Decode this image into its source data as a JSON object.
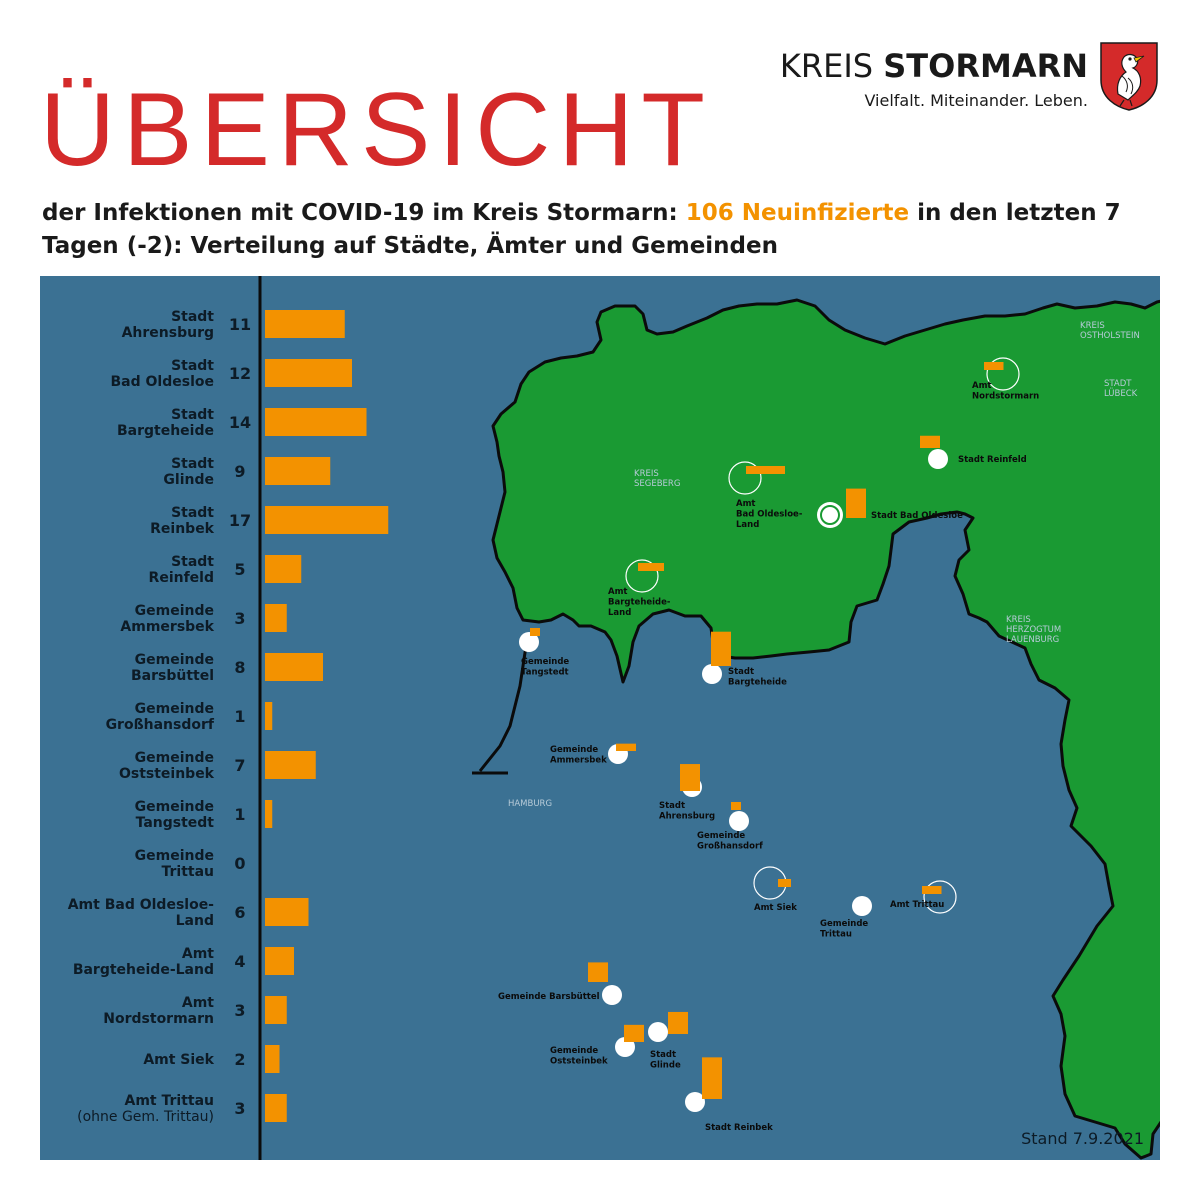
{
  "header": {
    "title": "ÜBERSICHT",
    "subtitle_pre": "der Infektionen mit COVID-19 im Kreis Stormarn: ",
    "subtitle_highlight": "106 Neuinfizierte",
    "subtitle_post": " in den letzten 7 Tagen (-2): Verteilung auf Städte, Ämter und Gemeinden",
    "highlight_color": "#f39200"
  },
  "logo": {
    "name_light": "KREIS ",
    "name_bold": "STORMARN",
    "slogan": "Vielfalt. Miteinander. Leben."
  },
  "colors": {
    "background": "#3b7193",
    "bar": "#f39200",
    "map_fill": "#1a9a33",
    "title": "#d42a2a"
  },
  "chart_data": {
    "type": "bar",
    "orientation": "horizontal",
    "categories": [
      [
        "Stadt",
        "Ahrensburg"
      ],
      [
        "Stadt",
        "Bad Oldesloe"
      ],
      [
        "Stadt",
        "Bargteheide"
      ],
      [
        "Stadt",
        "Glinde"
      ],
      [
        "Stadt",
        "Reinbek"
      ],
      [
        "Stadt",
        "Reinfeld"
      ],
      [
        "Gemeinde",
        "Ammersbek"
      ],
      [
        "Gemeinde",
        "Barsbüttel"
      ],
      [
        "Gemeinde",
        "Großhansdorf"
      ],
      [
        "Gemeinde",
        "Oststeinbek"
      ],
      [
        "Gemeinde",
        "Tangstedt"
      ],
      [
        "Gemeinde",
        "Trittau"
      ],
      [
        "Amt Bad Oldesloe-",
        "Land"
      ],
      [
        "Amt",
        "Bargteheide-Land"
      ],
      [
        "Amt",
        "Nordstormarn"
      ],
      [
        "Amt Siek"
      ],
      [
        "Amt Trittau",
        "(ohne Gem. Trittau)"
      ]
    ],
    "values": [
      11,
      12,
      14,
      9,
      17,
      5,
      3,
      8,
      1,
      7,
      1,
      0,
      6,
      4,
      3,
      2,
      3
    ],
    "xlim": [
      0,
      17
    ]
  },
  "map": {
    "region_labels": [
      [
        "KREIS",
        "OSTHOLSTEIN"
      ],
      [
        "STADT",
        "LÜBECK"
      ],
      [
        "KREIS",
        "SEGEBERG"
      ],
      [
        "KREIS",
        "HERZOGTUM",
        "LAUENBURG"
      ],
      [
        "HAMBURG"
      ]
    ],
    "places": [
      [
        "Amt",
        "Nordstormarn"
      ],
      [
        "Stadt Reinfeld"
      ],
      [
        "Amt",
        "Bad Oldesloe-",
        "Land"
      ],
      [
        "Stadt Bad Oldesloe"
      ],
      [
        "Amt",
        "Bargteheide-",
        "Land"
      ],
      [
        "Gemeinde",
        "Tangstedt"
      ],
      [
        "Stadt",
        "Bargteheide"
      ],
      [
        "Gemeinde",
        "Ammersbek"
      ],
      [
        "Stadt",
        "Ahrensburg"
      ],
      [
        "Gemeinde",
        "Großhansdorf"
      ],
      [
        "Amt Siek"
      ],
      [
        "Gemeinde",
        "Trittau"
      ],
      [
        "Amt Trittau"
      ],
      [
        "Gemeinde Barsbüttel"
      ],
      [
        "Stadt",
        "Glinde"
      ],
      [
        "Gemeinde",
        "Oststeinbek"
      ],
      [
        "Stadt Reinbek"
      ]
    ]
  },
  "footer": {
    "stand": "Stand 7.9.2021"
  }
}
